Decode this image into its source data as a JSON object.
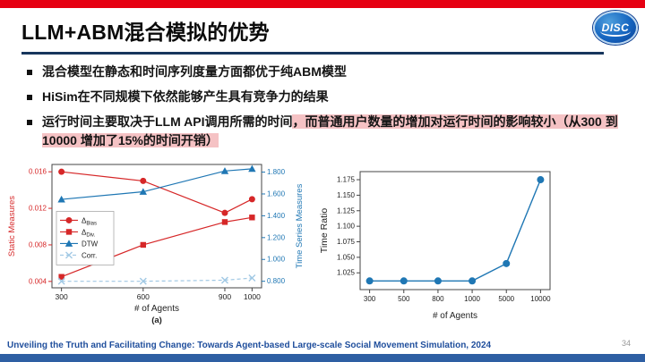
{
  "slide": {
    "title": "LLM+ABM混合模拟的优势",
    "logo_text": "DISC",
    "footer": "Unveiling the Truth and Facilitating Change: Towards Agent-based Large-scale Social Movement Simulation, 2024",
    "page_number": "34"
  },
  "bullets": [
    {
      "text": "混合模型在静态和时间序列度量方面都优于纯ABM模型"
    },
    {
      "text": "HiSim在不同规模下依然能够产生具有竞争力的结果"
    },
    {
      "prefix": "运行时间主要取决于",
      "bold": "LLM API调用所需的时间",
      "highlight": "，而普通用户数量的增加对运行时间的影响较小（从300 到 10000 增加了15%的时间开销）"
    }
  ],
  "colors": {
    "top_bar": "#e60012",
    "bottom_bar": "#2e5fa3",
    "title_rule": "#17365d",
    "footer_text": "#1f4e9c",
    "chart_red": "#d62728",
    "chart_blue": "#1f77b4",
    "chart_light_blue": "#a0c8e4"
  },
  "chart_data": [
    {
      "type": "line",
      "xlabel": "# of Agents",
      "sublabel": "(a)",
      "x": [
        300,
        600,
        900,
        1000
      ],
      "xticks": [
        "300",
        "600",
        "900",
        "1000"
      ],
      "left_axis": {
        "label": "Static Measures",
        "color": "#d62728",
        "ticks": [
          "0.004",
          "0.008",
          "0.012",
          "0.016"
        ],
        "range": [
          0.0033,
          0.0168
        ]
      },
      "right_axis": {
        "label": "Time Series Measures",
        "color": "#1f77b4",
        "ticks": [
          "0.800",
          "1.000",
          "1.200",
          "1.400",
          "1.600",
          "1.800"
        ],
        "range": [
          0.74,
          1.87
        ]
      },
      "series": [
        {
          "name": "Δ_Bias",
          "axis": "left",
          "color": "#d62728",
          "marker": "circle",
          "dash": "solid",
          "values": [
            0.016,
            0.015,
            0.0115,
            0.013
          ]
        },
        {
          "name": "Δ_Div.",
          "axis": "left",
          "color": "#d62728",
          "marker": "square",
          "dash": "solid",
          "values": [
            0.0045,
            0.008,
            0.0105,
            0.011
          ]
        },
        {
          "name": "DTW",
          "axis": "right",
          "color": "#1f77b4",
          "marker": "triangle",
          "dash": "solid",
          "values": [
            1.55,
            1.62,
            1.81,
            1.83
          ]
        },
        {
          "name": "Corr.",
          "axis": "right",
          "color": "#a0c8e4",
          "marker": "x",
          "dash": "dashed",
          "values": [
            0.8,
            0.8,
            0.81,
            0.83
          ]
        }
      ],
      "legend_position": "left-middle",
      "grid": false
    },
    {
      "type": "line",
      "xlabel": "# of Agents",
      "ylabel": "Time Ratio",
      "categories": [
        "300",
        "500",
        "800",
        "1000",
        "5000",
        "10000"
      ],
      "yticks": [
        "1.025",
        "1.050",
        "1.075",
        "1.100",
        "1.125",
        "1.150",
        "1.175"
      ],
      "ylim": [
        0.998,
        1.188
      ],
      "values": [
        1.012,
        1.012,
        1.012,
        1.012,
        1.04,
        1.175
      ],
      "color": "#1f77b4",
      "grid": false
    }
  ]
}
